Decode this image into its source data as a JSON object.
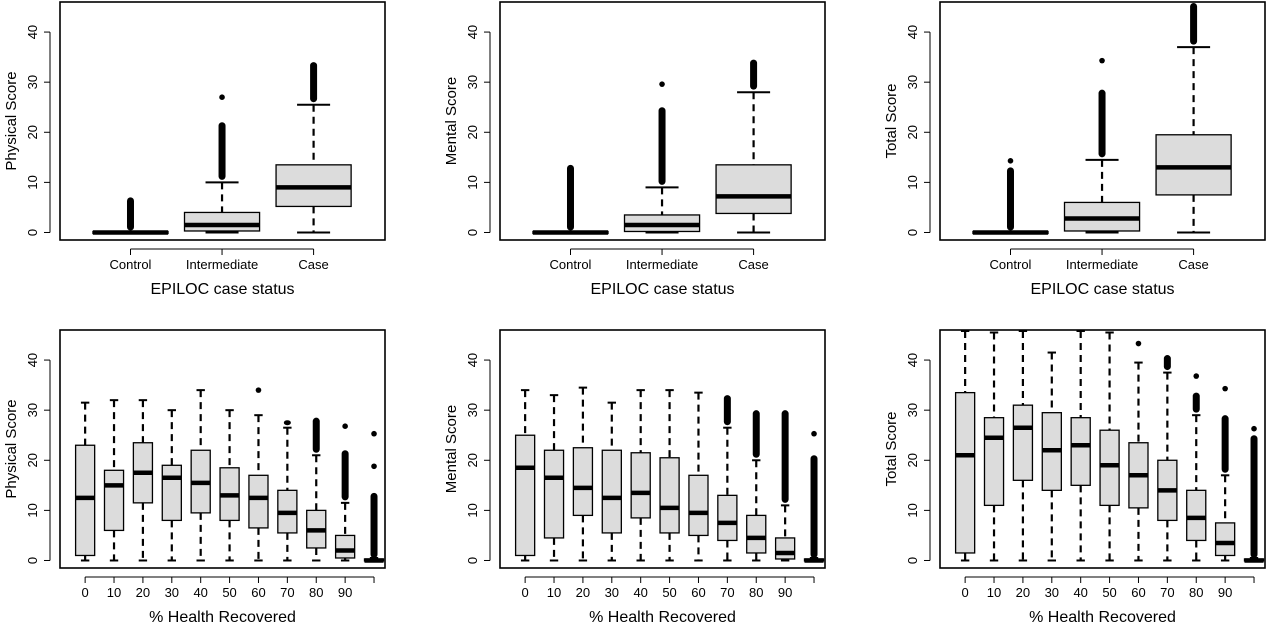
{
  "colors": {
    "box_fill": "#dcdcdc",
    "stroke": "#000000",
    "background": "#ffffff"
  },
  "chart_data": [
    {
      "type": "boxplot",
      "xlabel": "EPILOC case status",
      "ylabel": "Physical Score",
      "categories": [
        "Control",
        "Intermediate",
        "Case"
      ],
      "yticks": [
        0,
        10,
        20,
        30,
        40
      ],
      "ylim": [
        -1.5,
        46
      ],
      "boxes": [
        {
          "q1": 0,
          "median": 0,
          "q3": 0.2,
          "wlo": 0,
          "whi": 0.2,
          "out_lo": 0.4,
          "out_hi": 7,
          "outliers": []
        },
        {
          "q1": 0.3,
          "median": 1.5,
          "q3": 4,
          "wlo": 0,
          "whi": 10,
          "out_lo": 10.5,
          "out_hi": 22,
          "outliers": [
            27.2
          ]
        },
        {
          "q1": 5.2,
          "median": 9,
          "q3": 13.5,
          "wlo": 0,
          "whi": 25.5,
          "out_lo": 26,
          "out_hi": 34,
          "outliers": []
        }
      ]
    },
    {
      "type": "boxplot",
      "xlabel": "EPILOC case status",
      "ylabel": "Mental Score",
      "categories": [
        "Control",
        "Intermediate",
        "Case"
      ],
      "yticks": [
        0,
        10,
        20,
        30,
        40
      ],
      "ylim": [
        -1.5,
        46
      ],
      "boxes": [
        {
          "q1": 0,
          "median": 0,
          "q3": 0.2,
          "wlo": 0,
          "whi": 0.2,
          "out_lo": 0.4,
          "out_hi": 13.5,
          "outliers": []
        },
        {
          "q1": 0.2,
          "median": 1.5,
          "q3": 3.5,
          "wlo": 0,
          "whi": 9,
          "out_lo": 9.5,
          "out_hi": 25,
          "outliers": [
            29.8
          ]
        },
        {
          "q1": 3.8,
          "median": 7.2,
          "q3": 13.5,
          "wlo": 0,
          "whi": 28,
          "out_lo": 28.5,
          "out_hi": 34.5,
          "outliers": []
        }
      ]
    },
    {
      "type": "boxplot",
      "xlabel": "EPILOC case status",
      "ylabel": "Total Score",
      "categories": [
        "Control",
        "Intermediate",
        "Case"
      ],
      "yticks": [
        0,
        10,
        20,
        30,
        40
      ],
      "ylim": [
        -1.5,
        46
      ],
      "boxes": [
        {
          "q1": 0,
          "median": 0,
          "q3": 0.2,
          "wlo": 0,
          "whi": 0.2,
          "out_lo": 0.4,
          "out_hi": 13,
          "outliers": [
            14.5
          ]
        },
        {
          "q1": 0.3,
          "median": 2.8,
          "q3": 6,
          "wlo": 0,
          "whi": 14.5,
          "out_lo": 15,
          "out_hi": 28.5,
          "outliers": [
            34.5
          ]
        },
        {
          "q1": 7.5,
          "median": 13,
          "q3": 19.5,
          "wlo": 0,
          "whi": 37,
          "out_lo": 37.5,
          "out_hi": 46,
          "outliers": []
        }
      ]
    },
    {
      "type": "boxplot",
      "xlabel": "% Health Recovered",
      "ylabel": "Physical Score",
      "categories": [
        "0",
        "10",
        "20",
        "30",
        "40",
        "50",
        "60",
        "70",
        "80",
        "90",
        ""
      ],
      "yticks": [
        0,
        10,
        20,
        30,
        40
      ],
      "ylim": [
        -1.5,
        46
      ],
      "boxes": [
        {
          "q1": 1,
          "median": 12.5,
          "q3": 23,
          "wlo": 0,
          "whi": 31.5,
          "out_lo": null,
          "out_hi": null,
          "outliers": []
        },
        {
          "q1": 6,
          "median": 15,
          "q3": 18,
          "wlo": 0,
          "whi": 32,
          "out_lo": null,
          "out_hi": null,
          "outliers": []
        },
        {
          "q1": 11.5,
          "median": 17.5,
          "q3": 23.5,
          "wlo": 0,
          "whi": 32,
          "out_lo": null,
          "out_hi": null,
          "outliers": []
        },
        {
          "q1": 8,
          "median": 16.5,
          "q3": 19,
          "wlo": 0,
          "whi": 30,
          "out_lo": null,
          "out_hi": null,
          "outliers": []
        },
        {
          "q1": 9.5,
          "median": 15.5,
          "q3": 22,
          "wlo": 0,
          "whi": 34,
          "out_lo": null,
          "out_hi": null,
          "outliers": []
        },
        {
          "q1": 8,
          "median": 13,
          "q3": 18.5,
          "wlo": 0,
          "whi": 30,
          "out_lo": null,
          "out_hi": null,
          "outliers": []
        },
        {
          "q1": 6.5,
          "median": 12.5,
          "q3": 17,
          "wlo": 0,
          "whi": 29,
          "out_lo": null,
          "out_hi": null,
          "outliers": [
            34.2
          ]
        },
        {
          "q1": 5.5,
          "median": 9.5,
          "q3": 14,
          "wlo": 0,
          "whi": 26.5,
          "out_lo": 27,
          "out_hi": 28,
          "outliers": []
        },
        {
          "q1": 2.5,
          "median": 6,
          "q3": 10,
          "wlo": 0,
          "whi": 21,
          "out_lo": 21.5,
          "out_hi": 28.5,
          "outliers": []
        },
        {
          "q1": 0.5,
          "median": 2,
          "q3": 5,
          "wlo": 0,
          "whi": 11.5,
          "out_lo": 12,
          "out_hi": 22,
          "outliers": [
            27
          ]
        },
        {
          "q1": 0,
          "median": 0,
          "q3": 0.3,
          "wlo": 0,
          "whi": 0.5,
          "out_lo": 0.5,
          "out_hi": 13.5,
          "outliers": [
            19,
            25.5
          ]
        }
      ]
    },
    {
      "type": "boxplot",
      "xlabel": "% Health Recovered",
      "ylabel": "Mental Score",
      "categories": [
        "0",
        "10",
        "20",
        "30",
        "40",
        "50",
        "60",
        "70",
        "80",
        "90",
        ""
      ],
      "yticks": [
        0,
        10,
        20,
        30,
        40
      ],
      "ylim": [
        -1.5,
        46
      ],
      "boxes": [
        {
          "q1": 1,
          "median": 18.5,
          "q3": 25,
          "wlo": 0,
          "whi": 34,
          "out_lo": null,
          "out_hi": null,
          "outliers": []
        },
        {
          "q1": 4.5,
          "median": 16.5,
          "q3": 22,
          "wlo": 0,
          "whi": 33,
          "out_lo": null,
          "out_hi": null,
          "outliers": []
        },
        {
          "q1": 9,
          "median": 14.5,
          "q3": 22.5,
          "wlo": 0,
          "whi": 34.5,
          "out_lo": null,
          "out_hi": null,
          "outliers": []
        },
        {
          "q1": 5.5,
          "median": 12.5,
          "q3": 22,
          "wlo": 0,
          "whi": 31.5,
          "out_lo": null,
          "out_hi": null,
          "outliers": []
        },
        {
          "q1": 8.5,
          "median": 13.5,
          "q3": 21.5,
          "wlo": 0,
          "whi": 34,
          "out_lo": null,
          "out_hi": null,
          "outliers": []
        },
        {
          "q1": 5.5,
          "median": 10.5,
          "q3": 20.5,
          "wlo": 0,
          "whi": 34,
          "out_lo": null,
          "out_hi": null,
          "outliers": []
        },
        {
          "q1": 5,
          "median": 9.5,
          "q3": 17,
          "wlo": 0,
          "whi": 33.5,
          "out_lo": null,
          "out_hi": null,
          "outliers": []
        },
        {
          "q1": 4,
          "median": 7.5,
          "q3": 13,
          "wlo": 0,
          "whi": 26.5,
          "out_lo": 27,
          "out_hi": 33,
          "outliers": []
        },
        {
          "q1": 1.5,
          "median": 4.5,
          "q3": 9,
          "wlo": 0,
          "whi": 20,
          "out_lo": 20.5,
          "out_hi": 30,
          "outliers": []
        },
        {
          "q1": 0.3,
          "median": 1.5,
          "q3": 4.5,
          "wlo": 0,
          "whi": 11,
          "out_lo": 11.5,
          "out_hi": 30,
          "outliers": []
        },
        {
          "q1": 0,
          "median": 0,
          "q3": 0.3,
          "wlo": 0,
          "whi": 0.5,
          "out_lo": 0.5,
          "out_hi": 21,
          "outliers": [
            25.5
          ]
        }
      ]
    },
    {
      "type": "boxplot",
      "xlabel": "% Health Recovered",
      "ylabel": "Total Score",
      "categories": [
        "0",
        "10",
        "20",
        "30",
        "40",
        "50",
        "60",
        "70",
        "80",
        "90",
        ""
      ],
      "yticks": [
        0,
        10,
        20,
        30,
        40
      ],
      "ylim": [
        -1.5,
        46
      ],
      "boxes": [
        {
          "q1": 1.5,
          "median": 21,
          "q3": 33.5,
          "wlo": 0,
          "whi": 46,
          "out_lo": null,
          "out_hi": null,
          "outliers": []
        },
        {
          "q1": 11,
          "median": 24.5,
          "q3": 28.5,
          "wlo": 0,
          "whi": 45.5,
          "out_lo": null,
          "out_hi": null,
          "outliers": []
        },
        {
          "q1": 16,
          "median": 26.5,
          "q3": 31,
          "wlo": 0,
          "whi": 46,
          "out_lo": null,
          "out_hi": null,
          "outliers": []
        },
        {
          "q1": 14,
          "median": 22,
          "q3": 29.5,
          "wlo": 0,
          "whi": 41.5,
          "out_lo": null,
          "out_hi": null,
          "outliers": []
        },
        {
          "q1": 15,
          "median": 23,
          "q3": 28.5,
          "wlo": 0,
          "whi": 46,
          "out_lo": null,
          "out_hi": null,
          "outliers": []
        },
        {
          "q1": 11,
          "median": 19,
          "q3": 26,
          "wlo": 0,
          "whi": 45.5,
          "out_lo": null,
          "out_hi": null,
          "outliers": []
        },
        {
          "q1": 10.5,
          "median": 17,
          "q3": 23.5,
          "wlo": 0,
          "whi": 39.5,
          "out_lo": null,
          "out_hi": null,
          "outliers": [
            43.5
          ]
        },
        {
          "q1": 8,
          "median": 14,
          "q3": 20,
          "wlo": 0,
          "whi": 37.5,
          "out_lo": 38,
          "out_hi": 41,
          "outliers": []
        },
        {
          "q1": 4,
          "median": 8.5,
          "q3": 14,
          "wlo": 0,
          "whi": 29,
          "out_lo": 29.5,
          "out_hi": 33.5,
          "outliers": [
            37
          ]
        },
        {
          "q1": 1,
          "median": 3.5,
          "q3": 7.5,
          "wlo": 0,
          "whi": 17,
          "out_lo": 17.5,
          "out_hi": 29,
          "outliers": [
            34.5
          ]
        },
        {
          "q1": 0,
          "median": 0,
          "q3": 0.3,
          "wlo": 0,
          "whi": 0.5,
          "out_lo": 0.5,
          "out_hi": 25,
          "outliers": [
            26.5
          ]
        }
      ]
    }
  ]
}
